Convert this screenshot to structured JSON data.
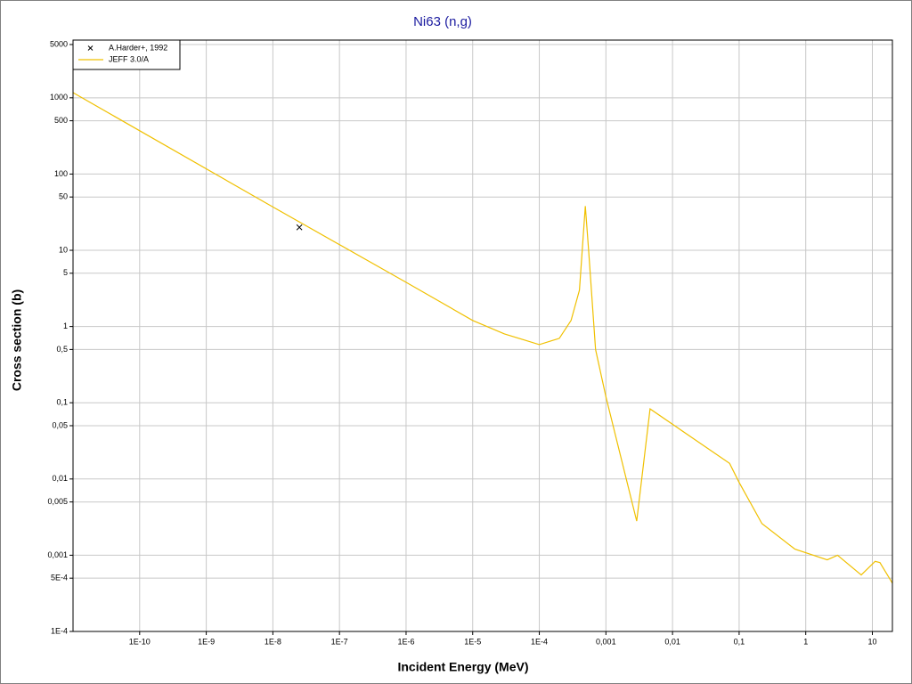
{
  "chart_data": {
    "type": "line",
    "title": "Ni63 (n,g)",
    "x_label": "Incident Energy (MeV)",
    "y_label": "Cross section (b)",
    "x_log": true,
    "y_log": true,
    "grid": true,
    "legend": "upper left",
    "xlim": [
      1e-11,
      20
    ],
    "ylim": [
      0.0001,
      5000
    ],
    "xticks": [
      {
        "value": 1e-10,
        "label": "1E-10"
      },
      {
        "value": 1e-09,
        "label": "1E-9"
      },
      {
        "value": 1e-08,
        "label": "1E-8"
      },
      {
        "value": 1e-07,
        "label": "1E-7"
      },
      {
        "value": 1e-06,
        "label": "1E-6"
      },
      {
        "value": 1e-05,
        "label": "1E-5"
      },
      {
        "value": 0.0001,
        "label": "1E-4"
      },
      {
        "value": 0.001,
        "label": "0,001"
      },
      {
        "value": 0.01,
        "label": "0,01"
      },
      {
        "value": 0.1,
        "label": "0,1"
      },
      1,
      10
    ],
    "yticks": [
      5000,
      1000,
      500,
      100,
      50,
      10,
      5,
      1,
      {
        "value": 0.5,
        "label": "0,5"
      },
      {
        "value": 0.1,
        "label": "0,1"
      },
      {
        "value": 0.05,
        "label": "0,05"
      },
      {
        "value": 0.01,
        "label": "0,01"
      },
      {
        "value": 0.005,
        "label": "0,005"
      },
      {
        "value": 0.001,
        "label": "0,001"
      },
      {
        "value": 0.0005,
        "label": "5E-4"
      },
      {
        "value": 0.0001,
        "label": "1E-4"
      }
    ],
    "series": [
      {
        "name": "A.Harder+, 1992",
        "type": "scatter",
        "color": "#000000",
        "x": [
          2.5e-08
        ],
        "values": [
          20
        ]
      },
      {
        "name": "JEFF 3.0/A",
        "type": "line",
        "color": "#f0c000",
        "x": [
          1e-11,
          1e-08,
          1e-06,
          1e-05,
          3e-05,
          0.0001,
          0.0002,
          0.0003,
          0.0004,
          0.00049,
          0.00055,
          0.0007,
          0.001,
          0.0029,
          0.0046,
          0.072,
          0.1,
          0.22,
          0.69,
          2.1,
          3,
          6.8,
          11,
          13,
          20
        ],
        "values": [
          1170,
          37,
          3.8,
          1.2,
          0.8,
          0.58,
          0.7,
          1.2,
          3,
          38,
          10,
          0.5,
          0.12,
          0.0028,
          0.083,
          0.016,
          0.009,
          0.0026,
          0.0012,
          0.00087,
          0.001,
          0.00055,
          0.00083,
          0.0008,
          0.00043
        ]
      }
    ]
  }
}
